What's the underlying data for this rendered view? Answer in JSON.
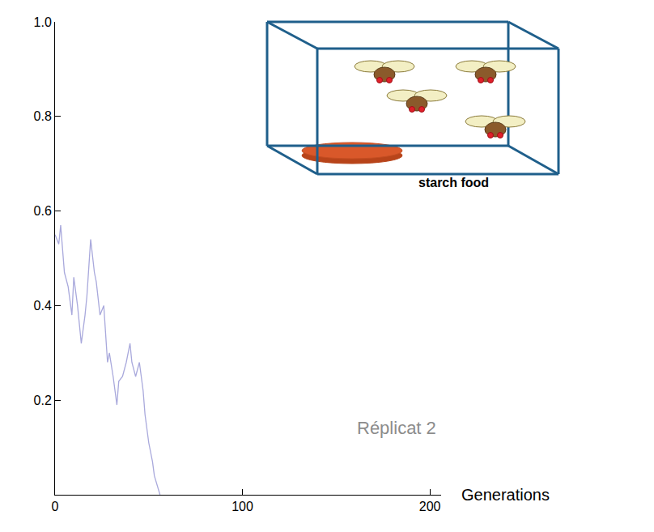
{
  "chart_data": {
    "type": "line",
    "x_label": "Generations",
    "annotations": [
      "Réplicat 2",
      "starch food"
    ],
    "x": [
      0,
      2,
      3,
      5,
      7,
      9,
      10,
      12,
      14,
      16,
      17,
      19,
      21,
      22,
      24,
      26,
      28,
      29,
      31,
      33,
      34,
      36,
      38,
      40,
      41,
      43,
      45,
      47,
      48,
      50,
      52,
      53,
      56
    ],
    "values": [
      0.55,
      0.53,
      0.57,
      0.47,
      0.44,
      0.38,
      0.46,
      0.4,
      0.32,
      0.38,
      0.42,
      0.54,
      0.47,
      0.45,
      0.38,
      0.4,
      0.28,
      0.3,
      0.25,
      0.19,
      0.24,
      0.25,
      0.28,
      0.32,
      0.28,
      0.25,
      0.28,
      0.22,
      0.17,
      0.11,
      0.07,
      0.04,
      0.0
    ],
    "color": "#a9a9dc",
    "xlim": [
      0,
      206
    ],
    "xticks": [
      0,
      100,
      200
    ],
    "ylim": [
      0,
      1
    ],
    "yticks": [
      0.2,
      0.4,
      0.6,
      0.8,
      {
        "value": 1,
        "label": "1.0"
      }
    ],
    "grid": false
  }
}
